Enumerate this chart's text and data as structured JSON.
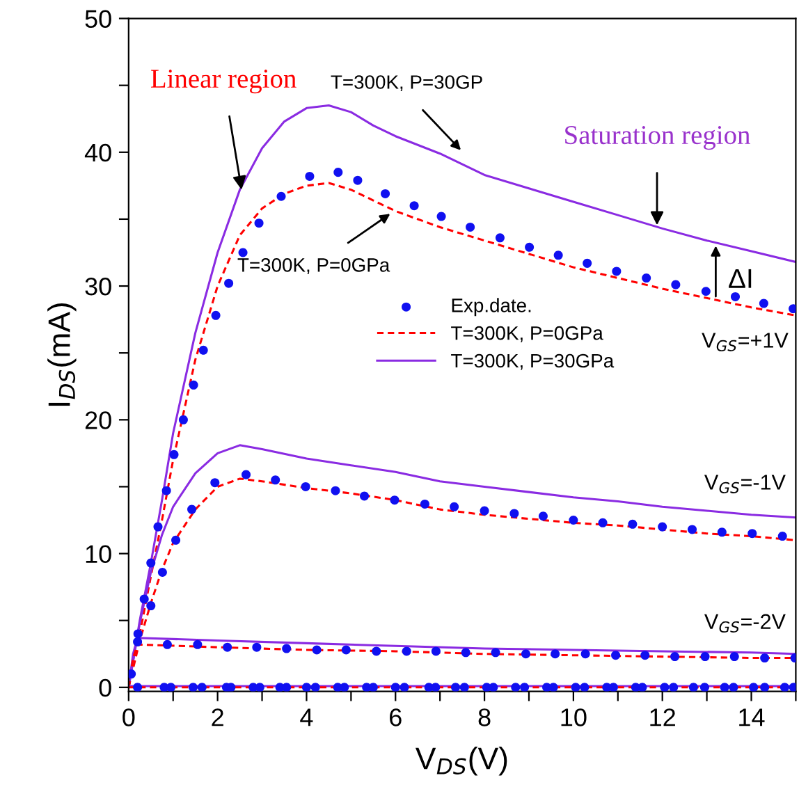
{
  "chart_data": {
    "type": "line",
    "xlabel": "V$_{DS}$(V)",
    "ylabel": "I$_{DS}$(mA)",
    "xlim": [
      0,
      15
    ],
    "ylim": [
      -0.3,
      50
    ],
    "xticks": [
      0,
      {
        "value": 1,
        "label": null
      },
      2,
      {
        "value": 3,
        "label": null
      },
      4,
      {
        "value": 5,
        "label": null
      },
      6,
      {
        "value": 7,
        "label": null
      },
      8,
      {
        "value": 9,
        "label": null
      },
      10,
      {
        "value": 11,
        "label": null
      },
      12,
      {
        "value": 13,
        "label": null
      },
      14,
      {
        "value": 15,
        "label": null
      }
    ],
    "yticks": [
      0,
      {
        "value": 5,
        "label": null
      },
      10,
      {
        "value": 15,
        "label": null
      },
      20,
      {
        "value": 25,
        "label": null
      },
      30,
      {
        "value": 35,
        "label": null
      },
      40,
      {
        "value": 45,
        "label": null
      },
      50
    ],
    "grid": false,
    "legend": "center",
    "series": [
      {
        "name": "Exp.date.",
        "type": "scatter",
        "marker": "circle",
        "color": "#1010f0",
        "x": [
          0.06,
          0.21,
          0.35,
          0.5,
          0.66,
          0.85,
          1.02,
          1.23,
          1.46,
          1.68,
          1.96,
          2.25,
          2.57,
          2.93,
          3.43,
          4.07,
          4.71,
          5.15,
          5.77,
          6.42,
          7.03,
          7.68,
          8.35,
          9.01,
          9.66,
          10.31,
          10.97,
          11.64,
          12.3,
          12.98,
          13.64,
          14.28,
          14.94
        ],
        "values": [
          1.0,
          4.0,
          6.6,
          9.3,
          12.0,
          14.7,
          17.4,
          20.0,
          22.6,
          25.2,
          27.8,
          30.2,
          32.5,
          34.7,
          36.7,
          38.2,
          38.5,
          37.9,
          36.9,
          36.0,
          35.2,
          34.4,
          33.6,
          32.9,
          32.3,
          31.7,
          31.1,
          30.6,
          30.1,
          29.6,
          29.2,
          28.7,
          28.3
        ]
      },
      {
        "name": "T=300K, P=0GPa",
        "line_style": "dashed",
        "color": "#ff0000",
        "x": [
          0,
          0.25,
          0.5,
          0.75,
          1,
          1.5,
          2,
          2.5,
          3,
          3.5,
          4,
          4.5,
          5,
          5.5,
          6,
          7,
          8,
          9,
          10,
          11,
          12,
          13,
          14,
          15
        ],
        "values": [
          0,
          4,
          8.3,
          12.5,
          17,
          24.5,
          30,
          33.8,
          35.8,
          36.9,
          37.5,
          37.7,
          37.2,
          36.4,
          35.6,
          34.4,
          33.4,
          32.4,
          31.4,
          30.6,
          29.8,
          29.1,
          28.4,
          27.8
        ]
      },
      {
        "name": "T=300K, P=30GPa",
        "line_style": "solid",
        "color": "#8a2be2",
        "x": [
          0,
          0.25,
          0.5,
          0.75,
          1,
          1.5,
          2,
          2.5,
          3,
          3.5,
          4,
          4.5,
          5,
          5.5,
          6,
          7,
          8,
          9,
          10,
          11,
          12,
          13,
          14,
          15
        ],
        "values": [
          0,
          5,
          9.3,
          14,
          19,
          26.5,
          32.5,
          37.2,
          40.3,
          42.3,
          43.3,
          43.5,
          43,
          42,
          41.2,
          39.9,
          38.3,
          37.3,
          36.3,
          35.3,
          34.3,
          33.4,
          32.6,
          31.8
        ]
      },
      {
        "line_style": "solid",
        "color": "#8a2be2",
        "x": [
          0,
          0.25,
          0.5,
          0.75,
          1,
          1.5,
          2,
          2.5,
          3,
          4,
          5,
          6,
          7,
          8,
          9,
          10,
          11,
          12,
          13,
          14,
          15
        ],
        "values": [
          0,
          4.8,
          8.6,
          11.4,
          13.5,
          16,
          17.5,
          18.1,
          17.8,
          17.1,
          16.6,
          16.1,
          15.4,
          15.0,
          14.6,
          14.2,
          13.9,
          13.5,
          13.2,
          12.9,
          12.7
        ]
      },
      {
        "line_style": "dashed",
        "color": "#ff0000",
        "x": [
          0,
          0.25,
          0.5,
          0.75,
          1,
          1.5,
          2,
          2.5,
          3,
          4,
          5,
          6,
          7,
          8,
          9,
          10,
          11,
          12,
          13,
          14,
          15
        ],
        "values": [
          0,
          3.5,
          6.3,
          8.8,
          10.8,
          13.3,
          15,
          15.6,
          15.4,
          14.9,
          14.5,
          14,
          13.3,
          12.9,
          12.6,
          12.3,
          12.1,
          11.8,
          11.5,
          11.3,
          11.0
        ]
      },
      {
        "type": "scatter",
        "marker": "circle",
        "color": "#1010f0",
        "x": [
          0.5,
          0.76,
          1.06,
          1.42,
          1.94,
          2.64,
          3.3,
          3.98,
          4.65,
          5.3,
          5.98,
          6.66,
          7.32,
          8.0,
          8.67,
          9.32,
          10.0,
          10.66,
          11.33,
          12.0,
          12.67,
          13.34,
          14.02,
          14.7
        ],
        "values": [
          6.1,
          8.6,
          11.0,
          13.3,
          15.3,
          15.9,
          15.5,
          15.0,
          14.7,
          14.3,
          14.0,
          13.7,
          13.5,
          13.2,
          13.0,
          12.8,
          12.5,
          12.3,
          12.2,
          12.0,
          11.8,
          11.6,
          11.5,
          11.3
        ]
      },
      {
        "line_style": "solid",
        "color": "#8a2be2",
        "x": [
          0,
          0.1,
          0.2,
          2,
          4,
          6,
          8,
          10,
          12,
          14,
          15
        ],
        "values": [
          0,
          2.5,
          3.7,
          3.5,
          3.3,
          3.1,
          2.9,
          2.8,
          2.7,
          2.6,
          2.5
        ]
      },
      {
        "line_style": "dashed",
        "color": "#ff0000",
        "x": [
          0,
          0.1,
          0.2,
          2,
          4,
          6,
          8,
          10,
          12,
          14,
          15
        ],
        "values": [
          0,
          2.2,
          3.2,
          3.0,
          2.8,
          2.7,
          2.5,
          2.4,
          2.3,
          2.2,
          2.2
        ]
      },
      {
        "type": "scatter",
        "marker": "circle",
        "color": "#1010f0",
        "x": [
          0.2,
          0.87,
          1.55,
          2.22,
          2.88,
          3.55,
          4.23,
          4.89,
          5.57,
          6.25,
          6.91,
          7.58,
          8.25,
          8.93,
          9.59,
          10.27,
          10.95,
          11.61,
          12.28,
          12.96,
          13.62,
          14.3,
          14.98
        ],
        "values": [
          3.4,
          3.2,
          3.2,
          3.0,
          3.0,
          2.9,
          2.8,
          2.8,
          2.7,
          2.7,
          2.7,
          2.6,
          2.6,
          2.5,
          2.5,
          2.5,
          2.4,
          2.4,
          2.3,
          2.3,
          2.3,
          2.2,
          2.2
        ]
      },
      {
        "line_style": "solid",
        "color": "#8a2be2",
        "x": [
          0,
          15
        ],
        "values": [
          0.1,
          0.1
        ]
      },
      {
        "line_style": "dashed",
        "color": "#ff0000",
        "x": [
          0,
          15
        ],
        "values": [
          0,
          0
        ]
      },
      {
        "type": "scatter",
        "marker": "circle",
        "color": "#1010f0",
        "x": [
          0.2,
          0.8,
          0.95,
          1.45,
          1.65,
          2.2,
          2.3,
          2.8,
          2.95,
          3.4,
          3.55,
          4.0,
          4.2,
          4.7,
          4.85,
          5.35,
          5.5,
          6.0,
          6.2,
          6.75,
          6.9,
          7.35,
          7.55,
          8.05,
          8.2,
          8.7,
          8.9,
          9.4,
          9.55,
          10.05,
          10.25,
          10.75,
          10.9,
          11.4,
          11.55,
          12.05,
          12.25,
          12.7,
          12.95,
          13.4,
          13.6,
          14.05,
          14.3,
          14.75,
          14.95
        ],
        "values": [
          0,
          0,
          0,
          0,
          0,
          0,
          0,
          0,
          0,
          0,
          0,
          0,
          0,
          0,
          0,
          0,
          0,
          0,
          0,
          0,
          0,
          0,
          0,
          0,
          0,
          0,
          0,
          0,
          0,
          0,
          0,
          0,
          0,
          0,
          0,
          0,
          0,
          0,
          0,
          0,
          0,
          0,
          0,
          0,
          0
        ]
      }
    ],
    "annotations": [
      {
        "text": "Linear region",
        "x": 2.54,
        "y": 37.2
      },
      "T=300K, P=30GP",
      {
        "text": "Saturation region",
        "x": 11.88,
        "y": 34.55
      },
      {
        "text": "T=300K, P=0GPa",
        "x": 5.88,
        "y": 35.4
      },
      {
        "text": "ΔI",
        "x": 13.2,
        "y": 33.3
      },
      "V$_{GS}$=+1V",
      "V$_{GS}$=-1V",
      "V$_{GS}$=-2V"
    ]
  }
}
